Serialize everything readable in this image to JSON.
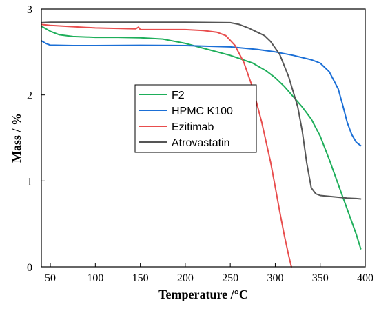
{
  "chart_data": {
    "type": "line",
    "title": "",
    "xlabel": "Temperature /°C",
    "ylabel": "Mass / %",
    "xlim": [
      40,
      400
    ],
    "ylim": [
      0,
      3
    ],
    "xticks": [
      50,
      100,
      150,
      200,
      250,
      300,
      350,
      400
    ],
    "yticks": [
      0,
      1,
      2,
      3
    ],
    "grid": false,
    "legend_position": "center-left",
    "series": [
      {
        "name": "F2",
        "color": "#1eae5a",
        "x": [
          40,
          50,
          60,
          75,
          100,
          125,
          150,
          175,
          200,
          225,
          250,
          275,
          290,
          300,
          310,
          320,
          330,
          340,
          350,
          360,
          370,
          380,
          390,
          395
        ],
        "y": [
          2.8,
          2.74,
          2.7,
          2.68,
          2.67,
          2.67,
          2.665,
          2.65,
          2.6,
          2.53,
          2.46,
          2.37,
          2.28,
          2.2,
          2.1,
          1.98,
          1.86,
          1.72,
          1.52,
          1.25,
          0.96,
          0.67,
          0.38,
          0.21
        ]
      },
      {
        "name": "HPMC K100",
        "color": "#1b6fd6",
        "x": [
          40,
          45,
          50,
          75,
          100,
          150,
          200,
          250,
          280,
          300,
          320,
          340,
          350,
          360,
          370,
          375,
          380,
          385,
          390,
          395
        ],
        "y": [
          2.63,
          2.6,
          2.58,
          2.575,
          2.575,
          2.578,
          2.575,
          2.56,
          2.53,
          2.5,
          2.46,
          2.41,
          2.37,
          2.27,
          2.07,
          1.88,
          1.68,
          1.54,
          1.45,
          1.41
        ]
      },
      {
        "name": "Ezitimab",
        "color": "#e84d4d",
        "x": [
          40,
          50,
          100,
          145,
          148,
          150,
          200,
          220,
          235,
          245,
          255,
          265,
          275,
          285,
          295,
          300,
          305,
          310,
          315,
          318
        ],
        "y": [
          2.82,
          2.81,
          2.78,
          2.77,
          2.79,
          2.76,
          2.76,
          2.75,
          2.73,
          2.69,
          2.58,
          2.38,
          2.08,
          1.68,
          1.21,
          0.93,
          0.64,
          0.37,
          0.13,
          0.0
        ]
      },
      {
        "name": "Atrovastatin",
        "color": "#555555",
        "x": [
          40,
          50,
          100,
          150,
          200,
          250,
          260,
          270,
          280,
          288,
          295,
          305,
          315,
          325,
          330,
          335,
          340,
          345,
          350,
          360,
          370,
          380,
          390,
          395
        ],
        "y": [
          2.84,
          2.845,
          2.845,
          2.845,
          2.845,
          2.84,
          2.82,
          2.78,
          2.73,
          2.69,
          2.62,
          2.47,
          2.21,
          1.86,
          1.58,
          1.21,
          0.92,
          0.85,
          0.83,
          0.82,
          0.81,
          0.8,
          0.795,
          0.79
        ]
      }
    ]
  }
}
